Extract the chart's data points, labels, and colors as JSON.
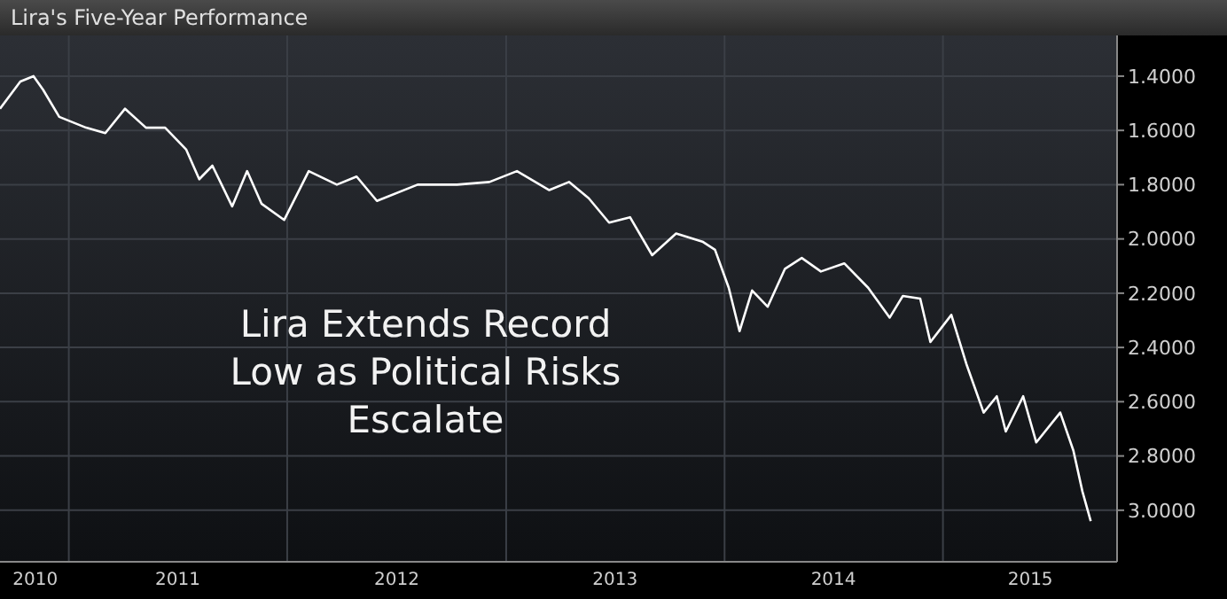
{
  "chart_data": {
    "type": "line",
    "title": "Lira's Five-Year Performance",
    "annotations": [
      "Lira Extends Record Low as Political Risks Escalate"
    ],
    "x": [
      "2010-09-08",
      "2010-10-12",
      "2010-11-03",
      "2010-11-19",
      "2010-12-16",
      "2011-01-30",
      "2011-03-03",
      "2011-04-05",
      "2011-05-10",
      "2011-06-11",
      "2011-07-16",
      "2011-08-07",
      "2011-08-29",
      "2011-10-01",
      "2011-10-26",
      "2011-11-19",
      "2011-12-27",
      "2012-02-06",
      "2012-03-24",
      "2012-04-26",
      "2012-05-30",
      "2012-08-06",
      "2012-10-11",
      "2012-12-04",
      "2013-01-19",
      "2013-03-14",
      "2013-04-16",
      "2013-05-19",
      "2013-06-22",
      "2013-07-27",
      "2013-09-02",
      "2013-10-12",
      "2013-11-25",
      "2013-12-16",
      "2014-01-08",
      "2014-01-26",
      "2014-02-16",
      "2014-03-14",
      "2014-04-12",
      "2014-05-10",
      "2014-06-11",
      "2014-07-20",
      "2014-08-29",
      "2014-10-04",
      "2014-10-26",
      "2014-11-24",
      "2014-12-11",
      "2015-01-15",
      "2015-02-09",
      "2015-03-10",
      "2015-04-01",
      "2015-04-16",
      "2015-05-15",
      "2015-06-06",
      "2015-07-16",
      "2015-08-07",
      "2015-08-22",
      "2015-09-05"
    ],
    "series": [
      {
        "color": "#ffffff",
        "values": [
          1.52,
          1.42,
          1.4,
          1.45,
          1.55,
          1.59,
          1.61,
          1.52,
          1.59,
          1.59,
          1.67,
          1.78,
          1.73,
          1.88,
          1.75,
          1.87,
          1.93,
          1.75,
          1.8,
          1.77,
          1.86,
          1.8,
          1.8,
          1.79,
          1.75,
          1.82,
          1.79,
          1.85,
          1.94,
          1.92,
          2.06,
          1.98,
          2.01,
          2.04,
          2.18,
          2.34,
          2.19,
          2.25,
          2.11,
          2.07,
          2.12,
          2.09,
          2.18,
          2.29,
          2.21,
          2.22,
          2.38,
          2.28,
          2.46,
          2.64,
          2.58,
          2.71,
          2.58,
          2.75,
          2.64,
          2.78,
          2.93,
          3.04
        ]
      }
    ],
    "xlim": [
      "2010-09-08",
      "2015-10-19"
    ],
    "xticks": [
      {
        "value": "2010-11-06",
        "label": "2010"
      },
      {
        "value": "2011-01-01",
        "label": null
      },
      {
        "value": "2011-07-02",
        "label": "2011"
      },
      {
        "value": "2012-01-01",
        "label": null
      },
      {
        "value": "2012-07-02",
        "label": "2012"
      },
      {
        "value": "2013-01-01",
        "label": null
      },
      {
        "value": "2013-07-02",
        "label": "2013"
      },
      {
        "value": "2014-01-01",
        "label": null
      },
      {
        "value": "2014-07-02",
        "label": "2014"
      },
      {
        "value": "2015-01-01",
        "label": null
      },
      {
        "value": "2015-05-27",
        "label": "2015"
      }
    ],
    "ylim": [
      3.19,
      1.25
    ],
    "yticks": [
      {
        "value": 1.4,
        "label": "1.4000"
      },
      {
        "value": 1.6,
        "label": "1.6000"
      },
      {
        "value": 1.8,
        "label": "1.8000"
      },
      {
        "value": 2.0,
        "label": "2.0000"
      },
      {
        "value": 2.2,
        "label": "2.2000"
      },
      {
        "value": 2.4,
        "label": "2.4000"
      },
      {
        "value": 2.6,
        "label": "2.6000"
      },
      {
        "value": 2.8,
        "label": "2.8000"
      },
      {
        "value": 3.0,
        "label": "3.0000"
      }
    ],
    "grid": true,
    "marker": "none",
    "line_style": "solid"
  }
}
